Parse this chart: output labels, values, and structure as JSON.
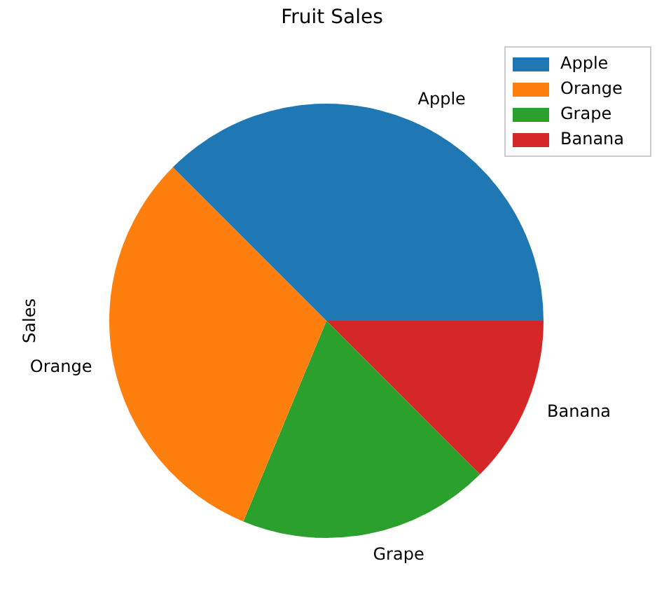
{
  "chart_data": {
    "type": "pie",
    "title": "Fruit Sales",
    "ylabel": "Sales",
    "categories": [
      "Apple",
      "Orange",
      "Grape",
      "Banana"
    ],
    "values": [
      37.5,
      31.25,
      18.75,
      12.5
    ],
    "colors": [
      "#1f77b4",
      "#ff7f0e",
      "#2ca02c",
      "#d62728"
    ],
    "legend": "top right"
  }
}
